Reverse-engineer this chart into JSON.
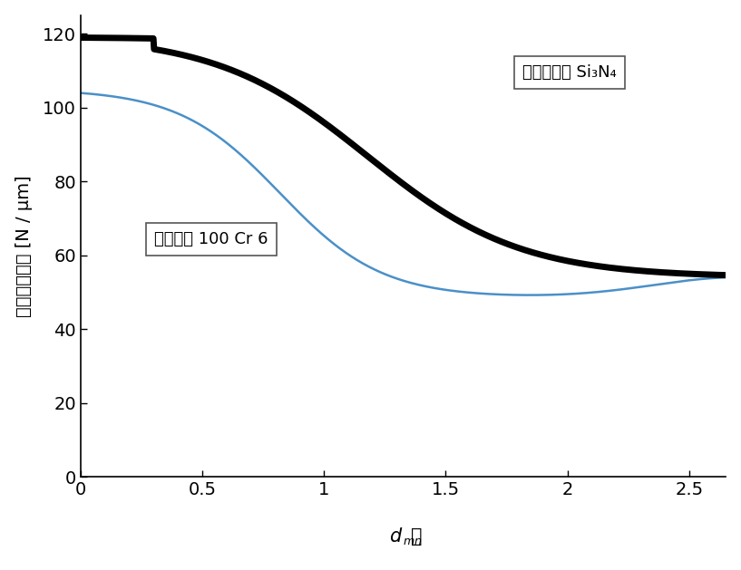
{
  "title": "",
  "ylabel": "ラジアル劑性 [N / μm]",
  "xlim": [
    0,
    2.65
  ],
  "ylim": [
    0,
    125
  ],
  "yticks": [
    0,
    20,
    40,
    60,
    80,
    100,
    120
  ],
  "xticks": [
    0,
    0.5,
    1.0,
    1.5,
    2.0,
    2.5
  ],
  "xticklabels": [
    "0",
    "0.5",
    "1",
    "1.5",
    "2",
    "2.5"
  ],
  "ceramic_label": "セラミック Si₃N₄",
  "steel_label": "スチール 100 Cr 6",
  "ceramic_color": "#000000",
  "steel_color": "#4a90c8",
  "ceramic_linewidth": 5.0,
  "steel_linewidth": 1.8,
  "background_color": "#ffffff",
  "tick_labelsize": 14,
  "label_fontsize": 14,
  "annot_fontsize": 13
}
